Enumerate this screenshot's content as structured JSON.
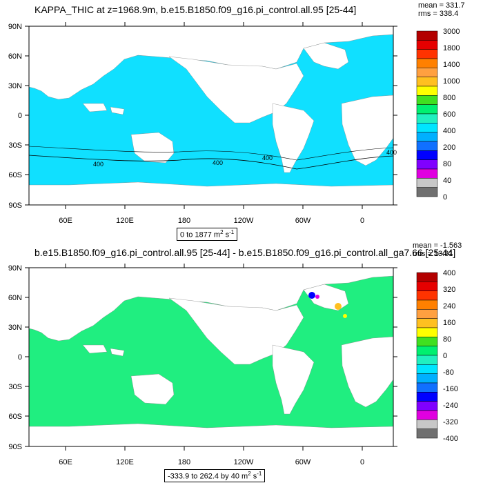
{
  "panels": [
    {
      "title": "KAPPA_THIC at z=1968.9m, b.e15.B1850.f09_g16.pi_control.all.95 [25-44]",
      "stats": {
        "mean": "mean = 331.7",
        "rms": "rms = 338.4"
      },
      "range_label": "0 to 1877 m",
      "range_unit_exp": "2",
      "range_unit_s": " s",
      "range_unit_s_exp": "-1",
      "contour_labels": [
        "400",
        "400",
        "400",
        "400"
      ],
      "colorbar": {
        "labels": [
          "3000",
          "1800",
          "1400",
          "1000",
          "800",
          "600",
          "400",
          "200",
          "80",
          "40",
          "0"
        ],
        "colors": [
          "#b30000",
          "#e60000",
          "#ff3300",
          "#ff8000",
          "#ffa040",
          "#ffc020",
          "#ffff00",
          "#40e020",
          "#00f070",
          "#20f0c0",
          "#00e5ff",
          "#00b0ff",
          "#1070ff",
          "#0000ff",
          "#8000ff",
          "#e000e0",
          "#c8c8c8",
          "#707070"
        ]
      },
      "ocean_color": "#10e0ff"
    },
    {
      "title": "b.e15.B1850.f09_g16.pi_control.all.95 [25-44] - b.e15.B1850.f09_g16.pi_control.all_ga7.66 [25-44]",
      "stats": {
        "mean": "mean = -1.563",
        "rms": "rms = 13.81"
      },
      "range_label": "-333.9 to 262.4 by 40 m",
      "range_unit_exp": "2",
      "range_unit_s": " s",
      "range_unit_s_exp": "-1",
      "colorbar": {
        "labels": [
          "400",
          "320",
          "240",
          "160",
          "80",
          "0",
          "-80",
          "-160",
          "-240",
          "-320",
          "-400"
        ],
        "colors": [
          "#b30000",
          "#e60000",
          "#ff3300",
          "#ff8000",
          "#ffa040",
          "#ffc020",
          "#ffff00",
          "#40e020",
          "#00f070",
          "#20f0c0",
          "#00e5ff",
          "#00b0ff",
          "#1070ff",
          "#0000ff",
          "#8000ff",
          "#e000e0",
          "#c8c8c8",
          "#707070"
        ]
      },
      "ocean_color": "#20ee80"
    }
  ],
  "axes": {
    "lat_labels": [
      "90N",
      "60N",
      "30N",
      "0",
      "30S",
      "60S",
      "90S"
    ],
    "lon_labels": [
      "60E",
      "120E",
      "180",
      "120W",
      "60W",
      "0"
    ]
  },
  "colors": {
    "land": "#ffffff",
    "coast": "#000000"
  }
}
